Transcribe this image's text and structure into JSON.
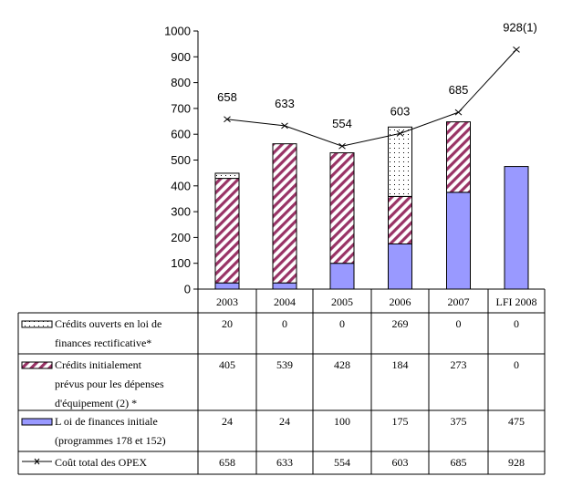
{
  "chart_data": {
    "type": "bar",
    "stacked": true,
    "title": "",
    "xlabel": "",
    "ylabel": "",
    "ylim": [
      0,
      1000
    ],
    "yticks": [
      0,
      100,
      200,
      300,
      400,
      500,
      600,
      700,
      800,
      900,
      1000
    ],
    "grid": false,
    "legend": "data-table-left",
    "categories": [
      "2003",
      "2004",
      "2005",
      "2006",
      "2007",
      "LFI 2008"
    ],
    "series": [
      {
        "name": "Loi de finances initiale (programmes 178 et 152)",
        "lines": [
          "L oi de finances initiale",
          "(programmes 178 et 152)"
        ],
        "kind": "bar",
        "pattern": "solid",
        "color": "#9999FF",
        "values": [
          24,
          24,
          100,
          175,
          375,
          475
        ],
        "display": [
          "24",
          "24",
          "100",
          "175",
          "375",
          "475"
        ]
      },
      {
        "name": "Crédits initialement prévus pour les dépenses d'équipement (2) *",
        "lines": [
          "Crédits initialement",
          "prévus pour les dépenses",
          "d'équipement (2) *"
        ],
        "kind": "bar",
        "pattern": "diagonal-stripes",
        "color": "#993366",
        "values": [
          405,
          539,
          428,
          184,
          273,
          0
        ],
        "display": [
          "405",
          "539",
          "428",
          "184",
          "273",
          "0"
        ]
      },
      {
        "name": "Crédits ouverts en loi de finances rectificative*",
        "lines": [
          "Crédits ouverts en loi de",
          "finances rectificative*"
        ],
        "kind": "bar",
        "pattern": "dots",
        "color": "#000000",
        "values": [
          20,
          0,
          0,
          269,
          0,
          0
        ],
        "display": [
          "20",
          "0",
          "0",
          "269",
          "0",
          "0"
        ]
      },
      {
        "name": "Coût total des OPEX",
        "lines": [
          "Coût total des OPEX"
        ],
        "kind": "line",
        "marker": "x",
        "color": "#000000",
        "values": [
          658,
          633,
          554,
          603,
          685,
          928
        ],
        "display": [
          "658",
          "633",
          "554",
          "603",
          "685",
          "928"
        ],
        "point_labels": [
          "658",
          "633",
          "554",
          "603",
          "685",
          "928(1)"
        ]
      }
    ],
    "table_row_order": [
      2,
      1,
      0,
      3
    ]
  }
}
